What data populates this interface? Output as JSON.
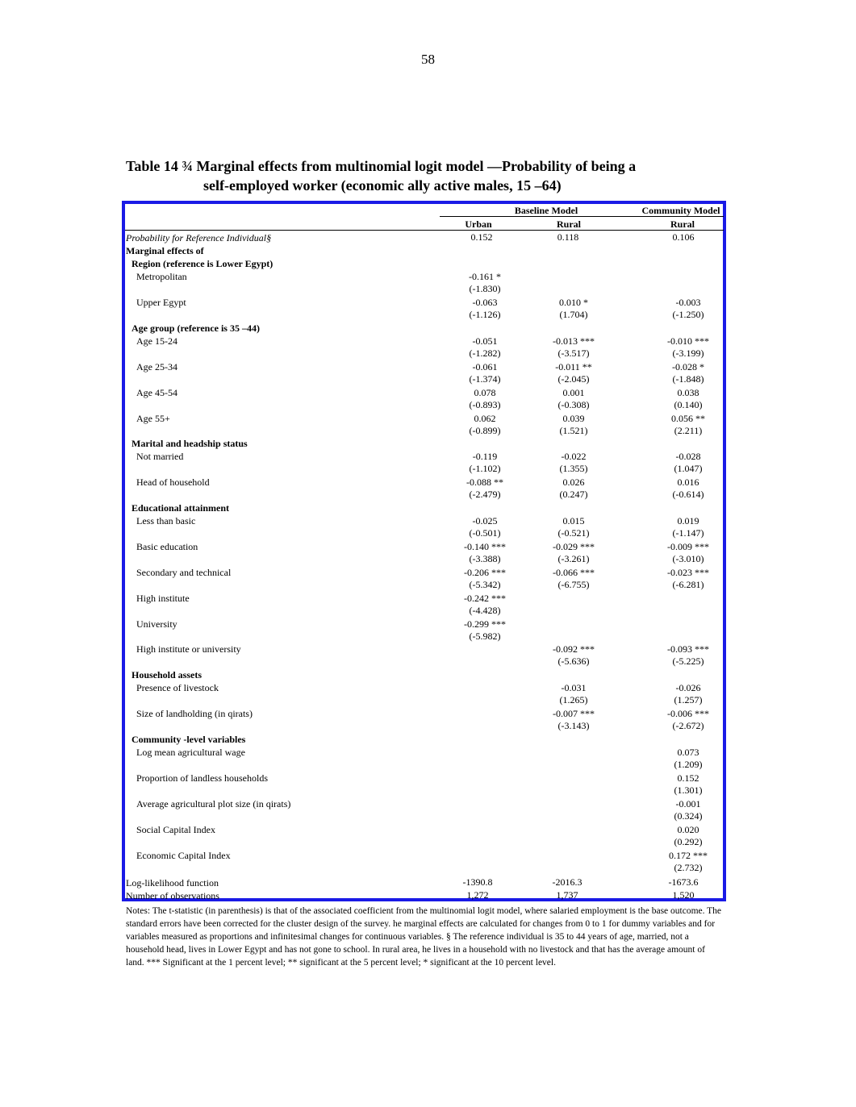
{
  "page_number": "58",
  "title": {
    "line1": "Table 14 ¾ Marginal effects from multinomial logit model   —Probability of being a",
    "line2": "self-employed worker (economic ally active males, 15 –64)"
  },
  "table": {
    "group_headers": {
      "baseline": "Baseline Model",
      "community": "Community Model"
    },
    "column_headers": {
      "urban": "Urban",
      "rural": "Rural",
      "community_rural": "Rural"
    },
    "reference_row": {
      "label": "Probability for Reference Individual§",
      "urban": "0.152",
      "rural": "0.118",
      "community_rural": "0.106"
    },
    "marginal_effects_heading": "Marginal effects of",
    "region_heading": "Region (reference is Lower Egypt)",
    "age_heading": "Age group (reference is 35 –44)",
    "marital_heading": "Marital and headship status",
    "education_heading": "Educational attainment",
    "assets_heading": "Household assets",
    "community_heading": "Community -level variables",
    "rows": {
      "metropolitan": {
        "label": "Metropolitan",
        "urban": [
          "-0.161 *",
          "(-1.830)"
        ],
        "rural": [
          "",
          ""
        ],
        "community_rural": [
          "",
          ""
        ]
      },
      "upper_egypt": {
        "label": "Upper Egypt",
        "urban": [
          "-0.063",
          "(-1.126)"
        ],
        "rural": [
          "0.010 *",
          "(1.704)"
        ],
        "community_rural": [
          "-0.003",
          "(-1.250)"
        ]
      },
      "age_15_24": {
        "label": "Age 15-24",
        "urban": [
          "-0.051",
          "(-1.282)"
        ],
        "rural": [
          "-0.013 ***",
          "(-3.517)"
        ],
        "community_rural": [
          "-0.010 ***",
          "(-3.199)"
        ]
      },
      "age_25_34": {
        "label": "Age 25-34",
        "urban": [
          "-0.061",
          "(-1.374)"
        ],
        "rural": [
          "-0.011 **",
          "(-2.045)"
        ],
        "community_rural": [
          "-0.028 *",
          "(-1.848)"
        ]
      },
      "age_45_54": {
        "label": "Age 45-54",
        "urban": [
          "0.078",
          "(-0.893)"
        ],
        "rural": [
          "0.001",
          "(-0.308)"
        ],
        "community_rural": [
          "0.038",
          "(0.140)"
        ]
      },
      "age_55": {
        "label": "Age 55+",
        "urban": [
          "0.062",
          "(-0.899)"
        ],
        "rural": [
          "0.039",
          "(1.521)"
        ],
        "community_rural": [
          "0.056 **",
          "(2.211)"
        ]
      },
      "not_married": {
        "label": "Not married",
        "urban": [
          "-0.119",
          "(-1.102)"
        ],
        "rural": [
          "-0.022",
          "(1.355)"
        ],
        "community_rural": [
          "-0.028",
          "(1.047)"
        ]
      },
      "head": {
        "label": "Head of household",
        "urban": [
          "-0.088 **",
          "(-2.479)"
        ],
        "rural": [
          "0.026",
          "(0.247)"
        ],
        "community_rural": [
          "0.016",
          "(-0.614)"
        ]
      },
      "less_basic": {
        "label": "Less than basic",
        "urban": [
          "-0.025",
          "(-0.501)"
        ],
        "rural": [
          "0.015",
          "(-0.521)"
        ],
        "community_rural": [
          "0.019",
          "(-1.147)"
        ]
      },
      "basic": {
        "label": "Basic education",
        "urban": [
          "-0.140 ***",
          "(-3.388)"
        ],
        "rural": [
          "-0.029 ***",
          "(-3.261)"
        ],
        "community_rural": [
          "-0.009 ***",
          "(-3.010)"
        ]
      },
      "secondary": {
        "label": "Secondary and technical",
        "urban": [
          "-0.206 ***",
          "(-5.342)"
        ],
        "rural": [
          "-0.066 ***",
          "(-6.755)"
        ],
        "community_rural": [
          "-0.023 ***",
          "(-6.281)"
        ]
      },
      "high_institute": {
        "label": "High institute",
        "urban": [
          "-0.242 ***",
          "(-4.428)"
        ],
        "rural": [
          "",
          ""
        ],
        "community_rural": [
          "",
          ""
        ]
      },
      "university": {
        "label": "University",
        "urban": [
          "-0.299 ***",
          "(-5.982)"
        ],
        "rural": [
          "",
          ""
        ],
        "community_rural": [
          "",
          ""
        ]
      },
      "high_or_univ": {
        "label": "High institute or university",
        "urban": [
          "",
          ""
        ],
        "rural": [
          "-0.092 ***",
          "(-5.636)"
        ],
        "community_rural": [
          "-0.093 ***",
          "(-5.225)"
        ]
      },
      "livestock": {
        "label": "Presence of livestock",
        "urban": [
          "",
          ""
        ],
        "rural": [
          "-0.031",
          "(1.265)"
        ],
        "community_rural": [
          "-0.026",
          "(1.257)"
        ]
      },
      "landholding": {
        "label": "Size of landholding (in qirats)",
        "urban": [
          "",
          ""
        ],
        "rural": [
          "-0.007 ***",
          "(-3.143)"
        ],
        "community_rural": [
          "-0.006 ***",
          "(-2.672)"
        ]
      },
      "log_wage": {
        "label": "Log mean agricultural wage",
        "urban": [
          "",
          ""
        ],
        "rural": [
          "",
          ""
        ],
        "community_rural": [
          "0.073",
          "(1.209)"
        ]
      },
      "landless": {
        "label": "Proportion of landless households",
        "urban": [
          "",
          ""
        ],
        "rural": [
          "",
          ""
        ],
        "community_rural": [
          "0.152",
          "(1.301)"
        ]
      },
      "plot_size": {
        "label": "Average agricultural plot size (in qirats)",
        "urban": [
          "",
          ""
        ],
        "rural": [
          "",
          ""
        ],
        "community_rural": [
          "-0.001",
          "(0.324)"
        ]
      },
      "social_capital": {
        "label": "Social Capital Index",
        "urban": [
          "",
          ""
        ],
        "rural": [
          "",
          ""
        ],
        "community_rural": [
          "0.020",
          "(0.292)"
        ]
      },
      "economic_capital": {
        "label": "Economic Capital Index",
        "urban": [
          "",
          ""
        ],
        "rural": [
          "",
          ""
        ],
        "community_rural": [
          "0.172 ***",
          "(2.732)"
        ]
      }
    },
    "loglik": {
      "label": "Log-likelihood function",
      "urban": "-1390.8",
      "rural": "-2016.3",
      "community_rural": "-1673.6"
    },
    "nobs": {
      "label": "Number of observations",
      "urban": "1,272",
      "rural": "1,737",
      "community_rural": "1,520"
    }
  },
  "notes": "Notes: The t-statistic (in parenthesis) is that of the associated coefficient from the multinomial logit model, where salaried employment is the base outcome. The standard errors have been corrected for the cluster design of the survey. he marginal effects are calculated for changes from 0 to 1 for dummy variables and for variables measured as proportions and infinitesimal changes for continuous variables. § The reference individual is 35 to 44 years of age, married, not a household head, lives in Lower Egypt and has not gone to school. In rural area, he lives in a household with no livestock and that has the average amount of land. *** Significant at the 1 percent level; ** significant at the 5 percent level; * significant at the 10 percent level."
}
